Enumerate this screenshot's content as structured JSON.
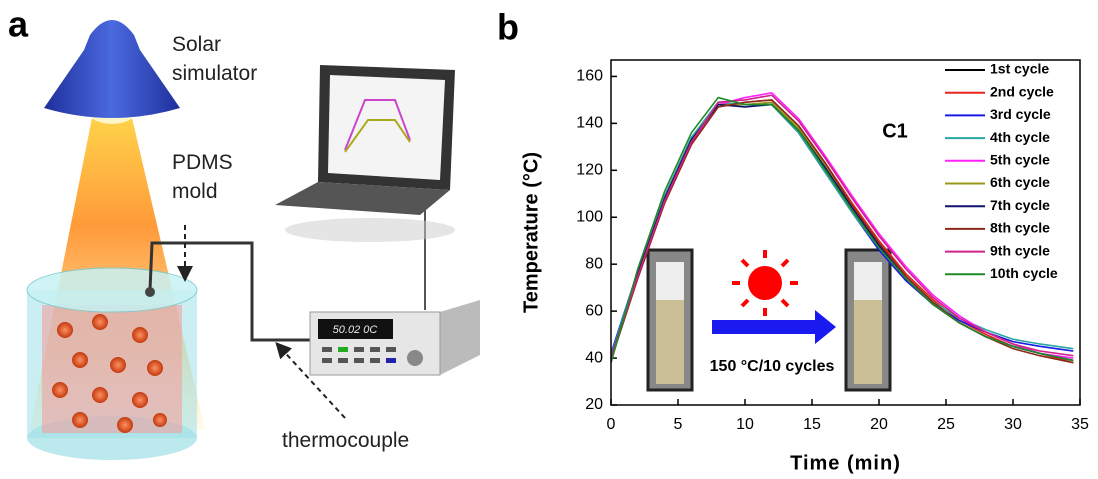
{
  "panel_a": {
    "label": "a",
    "lamp_label": "Solar simulator",
    "mold_label": "PDMS mold",
    "sensor_label": "thermocouple",
    "display_text": "50.02 0C"
  },
  "chart_data": {
    "type": "line",
    "label": "b",
    "annotation": "C1",
    "inset_caption": "150 °C/10 cycles",
    "xlabel": "Time (min)",
    "ylabel": "Temperature (°C)",
    "xlim": [
      0,
      35
    ],
    "xticks": [
      0,
      5,
      10,
      15,
      20,
      25,
      30,
      35
    ],
    "ylim": [
      20,
      167
    ],
    "yticks": [
      20,
      40,
      60,
      80,
      100,
      120,
      140,
      160
    ],
    "legend": "upper right",
    "x": [
      0,
      2,
      4,
      6,
      8,
      10,
      12,
      14,
      16,
      18,
      20,
      22,
      24,
      26,
      28,
      30,
      32,
      34.5
    ],
    "series": [
      {
        "name": "1st cycle",
        "color": "#000000",
        "values": [
          40,
          76,
          108,
          133,
          148,
          148,
          148,
          137,
          121,
          104,
          88,
          74,
          63,
          55,
          49,
          45,
          42,
          39
        ]
      },
      {
        "name": "2nd cycle",
        "color": "#e8251e",
        "values": [
          40,
          74,
          106,
          131,
          147,
          149,
          150,
          139,
          123,
          106,
          90,
          76,
          65,
          56,
          50,
          45,
          42,
          38
        ]
      },
      {
        "name": "3rd cycle",
        "color": "#1a1ae6",
        "values": [
          42,
          77,
          109,
          134,
          148,
          148,
          148,
          136,
          119,
          102,
          86,
          73,
          63,
          56,
          51,
          47,
          45,
          43
        ]
      },
      {
        "name": "4th cycle",
        "color": "#2aa7a0",
        "values": [
          41,
          77,
          109,
          134,
          149,
          148,
          148,
          136,
          119,
          102,
          87,
          74,
          64,
          57,
          52,
          48,
          46,
          44
        ]
      },
      {
        "name": "5th cycle",
        "color": "#ff22ff",
        "values": [
          40,
          75,
          107,
          132,
          148,
          151,
          153,
          142,
          126,
          109,
          93,
          79,
          67,
          58,
          51,
          46,
          42,
          40
        ]
      },
      {
        "name": "6th cycle",
        "color": "#9a9a1a",
        "values": [
          40,
          76,
          108,
          133,
          148,
          148,
          149,
          138,
          122,
          104,
          88,
          74,
          63,
          55,
          49,
          45,
          42,
          39
        ]
      },
      {
        "name": "7th cycle",
        "color": "#10106e",
        "values": [
          40,
          76,
          108,
          133,
          148,
          147,
          148,
          137,
          121,
          104,
          88,
          74,
          63,
          55,
          49,
          45,
          42,
          39
        ]
      },
      {
        "name": "8th cycle",
        "color": "#8b2a1a",
        "values": [
          39,
          74,
          106,
          131,
          147,
          149,
          150,
          139,
          123,
          105,
          89,
          75,
          64,
          55,
          49,
          44,
          41,
          38
        ]
      },
      {
        "name": "9th cycle",
        "color": "#d0208a",
        "values": [
          40,
          75,
          107,
          132,
          149,
          150,
          152,
          141,
          125,
          108,
          92,
          78,
          66,
          57,
          51,
          46,
          43,
          41
        ]
      },
      {
        "name": "10th cycle",
        "color": "#1f8a2a",
        "values": [
          38,
          78,
          111,
          136,
          151,
          148,
          148,
          137,
          120,
          103,
          87,
          74,
          63,
          55,
          49,
          45,
          42,
          39
        ]
      }
    ]
  }
}
